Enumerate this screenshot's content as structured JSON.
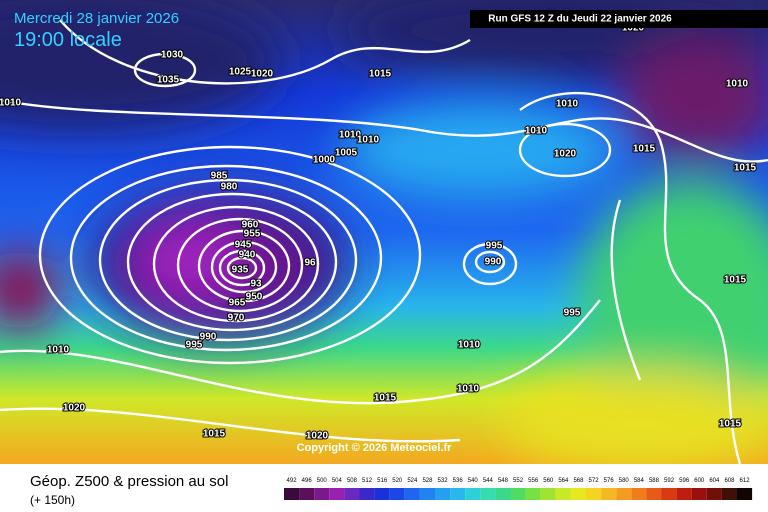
{
  "header": {
    "date": "Mercredi 28 janvier 2026",
    "time": "19:00 locale",
    "run": "Run GFS 12 Z du Jeudi 22 janvier 2026"
  },
  "isobar_labels": [
    "1030",
    "1035",
    "1025",
    "1020",
    "1015",
    "1010",
    "1010",
    "1010",
    "1005",
    "1000",
    "985",
    "980",
    "960",
    "955",
    "945",
    "940",
    "935",
    "93",
    "950",
    "965",
    "970",
    "96",
    "990",
    "995",
    "1010",
    "1020",
    "1015",
    "1020",
    "1015",
    "1010",
    "1010",
    "995",
    "990",
    "995",
    "1010",
    "1010",
    "1020",
    "1015",
    "1015",
    "1010",
    "1015",
    "1015",
    "1020"
  ],
  "copyright": "Copyright © 2026 Meteociel.fr",
  "footer": {
    "title": "Géop. Z500 & pression au sol",
    "subtitle": "(+ 150h)"
  },
  "scale": [
    492,
    496,
    500,
    504,
    508,
    512,
    516,
    520,
    524,
    528,
    532,
    536,
    540,
    544,
    548,
    552,
    556,
    560,
    564,
    568,
    572,
    576,
    580,
    584,
    588,
    592,
    596,
    600,
    604,
    608,
    612
  ]
}
